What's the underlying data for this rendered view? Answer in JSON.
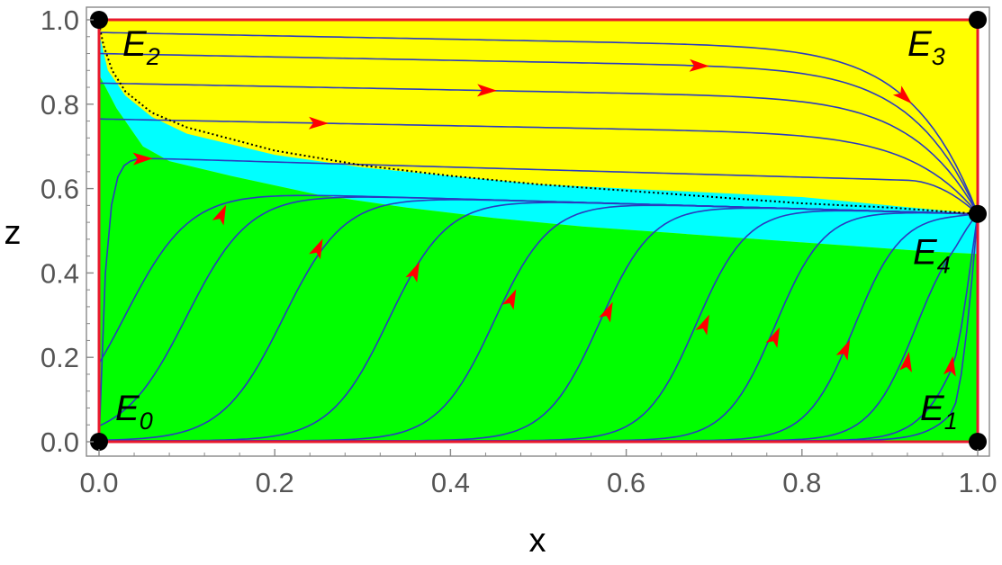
{
  "chart_data": {
    "type": "line",
    "xlabel": "x",
    "ylabel": "z",
    "xlim": [
      0,
      1
    ],
    "ylim": [
      0,
      1
    ],
    "x_ticks": [
      "0.0",
      "0.2",
      "0.4",
      "0.6",
      "0.8",
      "1.0"
    ],
    "y_ticks": [
      "0.0",
      "0.2",
      "0.4",
      "0.6",
      "0.8",
      "1.0"
    ],
    "grid": false,
    "colors": {
      "upper_region": "#ffff00",
      "middle_region": "#00ffff",
      "lower_region": "#00ff00",
      "frame": "#e8192c",
      "trajectories": "#2a3bbf",
      "arrows": "#ff0000",
      "separatrix": "#000000",
      "points": "#000000"
    },
    "regions": {
      "upper_boundary": [
        [
          0.01,
          0.88
        ],
        [
          0.03,
          0.82
        ],
        [
          0.06,
          0.77
        ],
        [
          0.1,
          0.73
        ],
        [
          0.2,
          0.68
        ],
        [
          0.3,
          0.65
        ],
        [
          0.4,
          0.63
        ],
        [
          0.5,
          0.61
        ],
        [
          0.6,
          0.6
        ],
        [
          0.7,
          0.59
        ],
        [
          0.8,
          0.58
        ],
        [
          0.9,
          0.56
        ],
        [
          1.0,
          0.54
        ]
      ],
      "lower_boundary": [
        [
          0.0,
          0.87
        ],
        [
          0.02,
          0.79
        ],
        [
          0.05,
          0.7
        ],
        [
          0.08,
          0.665
        ],
        [
          0.15,
          0.63
        ],
        [
          0.25,
          0.585
        ],
        [
          0.35,
          0.555
        ],
        [
          0.45,
          0.53
        ],
        [
          0.55,
          0.51
        ],
        [
          0.65,
          0.495
        ],
        [
          0.75,
          0.48
        ],
        [
          0.85,
          0.465
        ],
        [
          0.95,
          0.45
        ],
        [
          1.0,
          0.445
        ]
      ]
    },
    "separatrix": [
      [
        0.0,
        0.99
      ],
      [
        0.005,
        0.94
      ],
      [
        0.015,
        0.88
      ],
      [
        0.03,
        0.83
      ],
      [
        0.06,
        0.78
      ],
      [
        0.1,
        0.745
      ],
      [
        0.2,
        0.69
      ],
      [
        0.3,
        0.655
      ],
      [
        0.4,
        0.63
      ],
      [
        0.5,
        0.61
      ],
      [
        0.6,
        0.595
      ],
      [
        0.7,
        0.58
      ],
      [
        0.8,
        0.565
      ],
      [
        0.9,
        0.555
      ],
      [
        1.0,
        0.54
      ]
    ],
    "equilibria": [
      {
        "name": "E",
        "sub": "0",
        "x": 0,
        "y": 0
      },
      {
        "name": "E",
        "sub": "1",
        "x": 1,
        "y": 0
      },
      {
        "name": "E",
        "sub": "2",
        "x": 0,
        "y": 1
      },
      {
        "name": "E",
        "sub": "3",
        "x": 1,
        "y": 1
      },
      {
        "name": "E",
        "sub": "4",
        "x": 1,
        "y": 0.54
      }
    ],
    "trajectories": {
      "upper": [
        {
          "z0": 0.97,
          "arrow_x": 0.92
        },
        {
          "z0": 0.92,
          "arrow_x": 0.68
        },
        {
          "z0": 0.85,
          "arrow_x": 0.44
        },
        {
          "z0": 0.765,
          "arrow_x": 0.25
        }
      ],
      "transition": {
        "z0": 0.675,
        "arrow_x": 0.05
      },
      "lower_rise_x": [
        0.0,
        0.07,
        0.18,
        0.3,
        0.42,
        0.54,
        0.65,
        0.74,
        0.83,
        0.9,
        0.96,
        0.99
      ],
      "lower_arrows": [
        [
          0.14,
          0.54
        ],
        [
          0.25,
          0.46
        ],
        [
          0.36,
          0.405
        ],
        [
          0.47,
          0.34
        ],
        [
          0.58,
          0.31
        ],
        [
          0.69,
          0.28
        ],
        [
          0.77,
          0.25
        ],
        [
          0.85,
          0.22
        ],
        [
          0.92,
          0.19
        ],
        [
          0.97,
          0.18
        ]
      ]
    }
  }
}
